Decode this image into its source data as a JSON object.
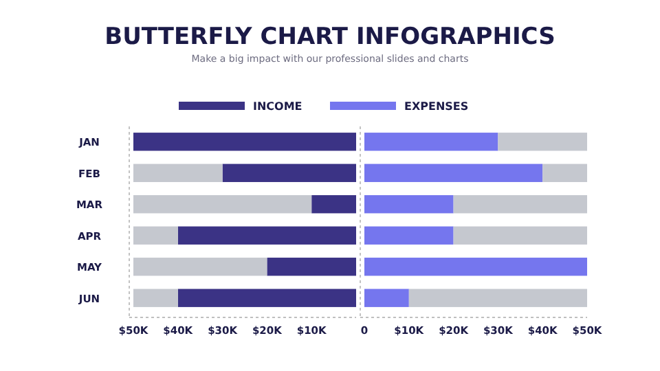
{
  "chart_data": [
    {
      "type": "bar",
      "orientation": "horizontal",
      "stacked": true,
      "title": "BUTTERFLY CHART INFOGRAPHICS",
      "subtitle": "Make a big impact with our professional slides and charts",
      "categories": [
        "JAN",
        "FEB",
        "MAR",
        "APR",
        "MAY",
        "JUN"
      ],
      "series": [
        {
          "name": "INCOME",
          "color": "#3b3385",
          "values": [
            50,
            30,
            10,
            40,
            20,
            40
          ]
        },
        {
          "color": "#c5c8cf",
          "values": [
            0,
            20,
            40,
            10,
            30,
            10
          ]
        }
      ],
      "xlim": [
        50,
        0
      ],
      "xticks": [
        {
          "value": 50,
          "label": "$50K"
        },
        {
          "value": 40,
          "label": "$40K"
        },
        {
          "value": 30,
          "label": "$30K"
        },
        {
          "value": 20,
          "label": "$20K"
        },
        {
          "value": 10,
          "label": "$10K"
        }
      ],
      "legend": "top"
    },
    {
      "type": "bar",
      "orientation": "horizontal",
      "stacked": true,
      "categories": [
        null,
        null,
        null,
        null,
        null,
        null
      ],
      "series": [
        {
          "name": "EXPENSES",
          "color": "#7576ee",
          "values": [
            30,
            40,
            20,
            20,
            50,
            10
          ]
        },
        {
          "color": "#c5c8cf",
          "values": [
            20,
            10,
            30,
            30,
            0,
            40
          ]
        }
      ],
      "xlim": [
        0,
        50
      ],
      "xticks": [
        0,
        {
          "value": 10,
          "label": "$10K"
        },
        {
          "value": 20,
          "label": "$20K"
        },
        {
          "value": 30,
          "label": "$30K"
        },
        {
          "value": 40,
          "label": "$40K"
        },
        {
          "value": 50,
          "label": "$50K"
        }
      ],
      "legend": "top"
    }
  ]
}
